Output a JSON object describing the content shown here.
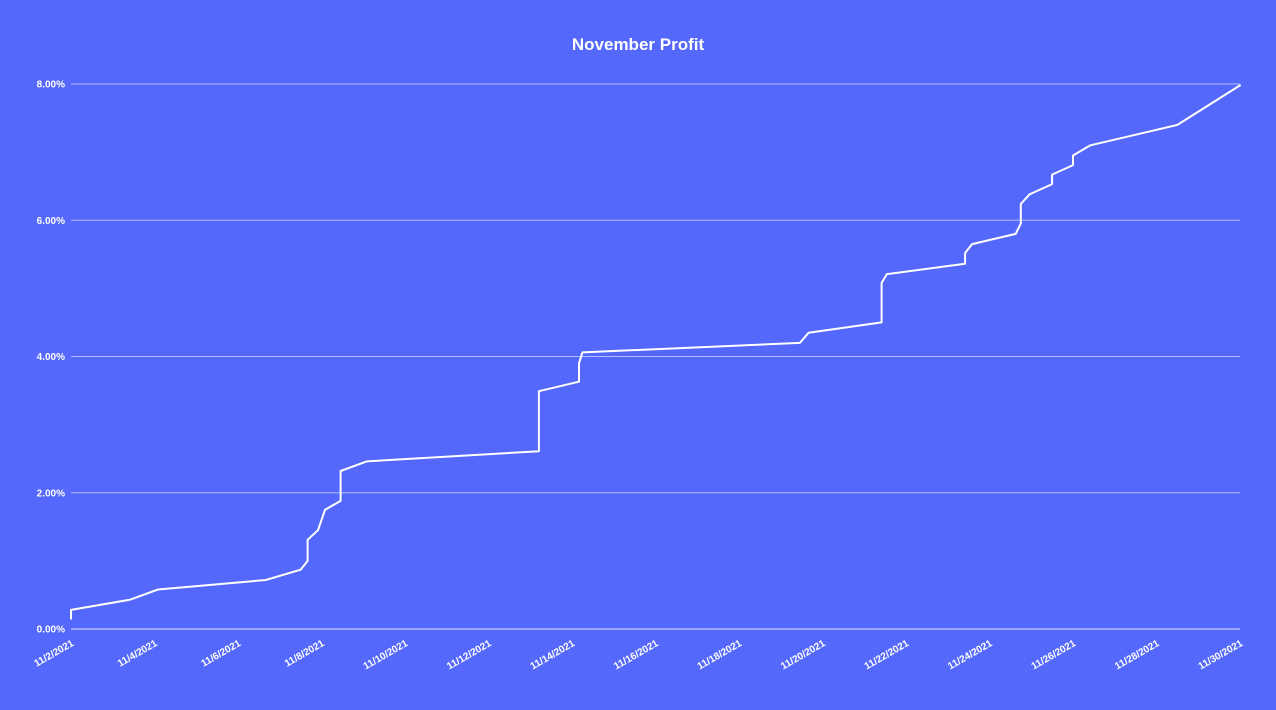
{
  "theme": {
    "background": "#5468fb",
    "line_color": "#ffffff",
    "text_color": "#ffffff"
  },
  "chart_data": {
    "type": "line",
    "title": "November Profit",
    "xlabel": "",
    "ylabel": "",
    "grid": true,
    "legend": "none",
    "x_axis": {
      "type": "date",
      "range": [
        "11/2/2021",
        "11/30/2021"
      ],
      "tick_labels": [
        "11/2/2021",
        "11/4/2021",
        "11/6/2021",
        "11/8/2021",
        "11/10/2021",
        "11/12/2021",
        "11/14/2021",
        "11/16/2021",
        "11/18/2021",
        "11/20/2021",
        "11/22/2021",
        "11/24/2021",
        "11/26/2021",
        "11/28/2021",
        "11/30/2021"
      ]
    },
    "y_axis": {
      "range": [
        0.0,
        8.0
      ],
      "unit": "%",
      "tick_values": [
        0,
        2,
        4,
        6,
        8
      ],
      "tick_labels": [
        "0.00%",
        "2.00%",
        "4.00%",
        "6.00%",
        "8.00%"
      ]
    },
    "series": [
      {
        "color": "#ffffff",
        "points": [
          [
            "11/2/2021 00:00",
            0.15
          ],
          [
            "11/2/2021 00:00",
            0.28
          ],
          [
            "11/3/2021 10:00",
            0.43
          ],
          [
            "11/4/2021 02:00",
            0.58
          ],
          [
            "11/6/2021 16:00",
            0.72
          ],
          [
            "11/7/2021 12:00",
            0.87
          ],
          [
            "11/7/2021 16:00",
            1.0
          ],
          [
            "11/7/2021 16:00",
            1.31
          ],
          [
            "11/7/2021 22:00",
            1.45
          ],
          [
            "11/8/2021 02:00",
            1.75
          ],
          [
            "11/8/2021 11:00",
            1.88
          ],
          [
            "11/8/2021 11:00",
            2.32
          ],
          [
            "11/9/2021 02:00",
            2.46
          ],
          [
            "11/13/2021 05:00",
            2.61
          ],
          [
            "11/13/2021 05:00",
            3.49
          ],
          [
            "11/14/2021 04:00",
            3.63
          ],
          [
            "11/14/2021 04:00",
            3.9
          ],
          [
            "11/14/2021 06:00",
            4.06
          ],
          [
            "11/19/2021 11:00",
            4.2
          ],
          [
            "11/19/2021 16:00",
            4.35
          ],
          [
            "11/21/2021 10:00",
            4.5
          ],
          [
            "11/21/2021 10:00",
            5.08
          ],
          [
            "11/21/2021 13:00",
            5.21
          ],
          [
            "11/23/2021 10:00",
            5.36
          ],
          [
            "11/23/2021 10:00",
            5.52
          ],
          [
            "11/23/2021 14:00",
            5.65
          ],
          [
            "11/24/2021 15:00",
            5.8
          ],
          [
            "11/24/2021 18:00",
            5.95
          ],
          [
            "11/24/2021 18:00",
            6.24
          ],
          [
            "11/24/2021 23:00",
            6.38
          ],
          [
            "11/25/2021 12:00",
            6.53
          ],
          [
            "11/25/2021 12:00",
            6.67
          ],
          [
            "11/26/2021 00:00",
            6.81
          ],
          [
            "11/26/2021 00:00",
            6.95
          ],
          [
            "11/26/2021 10:00",
            7.1
          ],
          [
            "11/28/2021 12:00",
            7.4
          ],
          [
            "11/30/2021 00:00",
            7.98
          ]
        ]
      }
    ]
  }
}
